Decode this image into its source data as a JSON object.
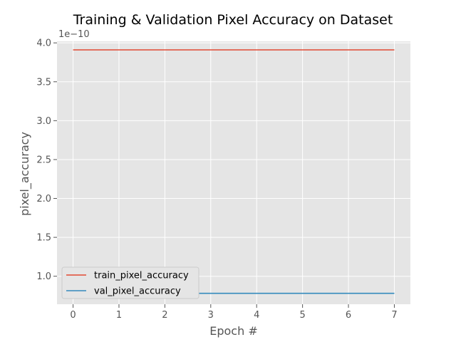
{
  "chart_data": {
    "type": "line",
    "title": "Training & Validation Pixel Accuracy on Dataset",
    "xlabel": "Epoch #",
    "ylabel": "pixel_accuracy",
    "y_offset_label": "1e−10",
    "x": [
      0,
      1,
      2,
      3,
      4,
      5,
      6,
      7
    ],
    "xlim": [
      -0.35,
      7.35
    ],
    "ylim": [
      0.64,
      4.02
    ],
    "x_ticks": [
      0,
      1,
      2,
      3,
      4,
      5,
      6,
      7
    ],
    "y_ticks": [
      1.0,
      1.5,
      2.0,
      2.5,
      3.0,
      3.5,
      4.0
    ],
    "y_tick_labels": [
      "1.0",
      "1.5",
      "2.0",
      "2.5",
      "3.0",
      "3.5",
      "4.0"
    ],
    "grid": true,
    "legend_position": "lower-left",
    "series": [
      {
        "name": "train_pixel_accuracy",
        "color": "#E24A33",
        "values": [
          3.91,
          3.91,
          3.91,
          3.91,
          3.91,
          3.91,
          3.91,
          3.91
        ]
      },
      {
        "name": "val_pixel_accuracy",
        "color": "#348ABD",
        "values": [
          0.78,
          0.78,
          0.78,
          0.78,
          0.78,
          0.78,
          0.78,
          0.78
        ]
      }
    ]
  }
}
